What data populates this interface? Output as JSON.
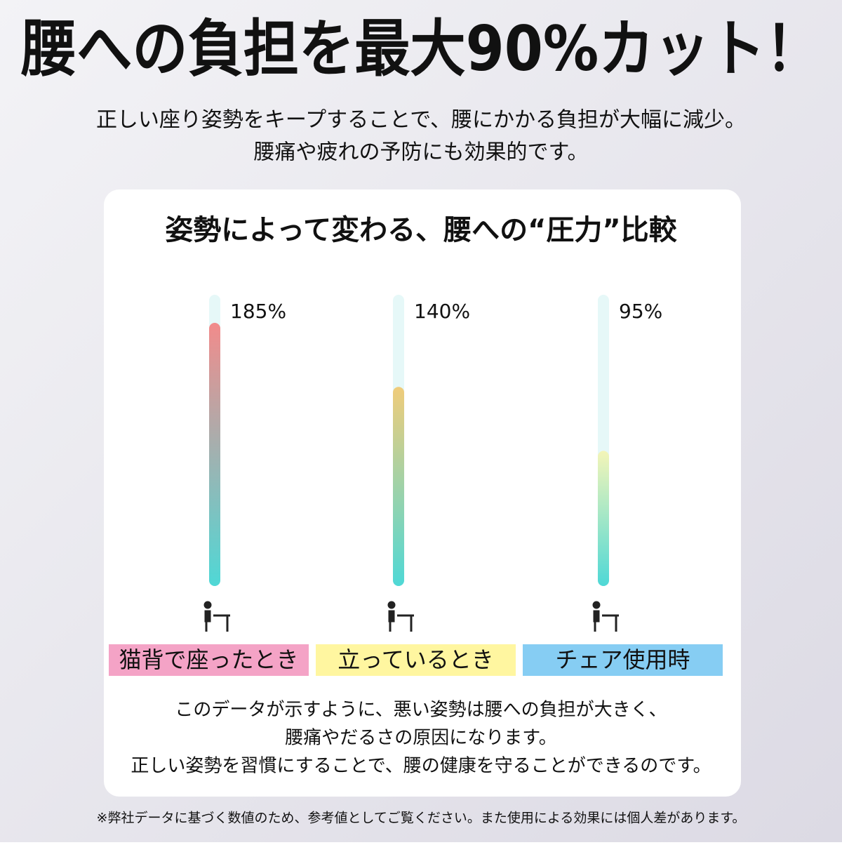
{
  "header": {
    "title": "腰への負担を最大90%カット！",
    "subtitle": [
      "正しい座り姿勢をキープすることで、腰にかかる負担が大幅に減少。",
      "腰痛や疲れの予防にも効果的です。"
    ]
  },
  "chart_data": {
    "type": "bar",
    "title": "姿勢によって変わる、腰への“圧力”比較",
    "categories": [
      "猫背で座ったとき",
      "立っているとき",
      "チェア使用時"
    ],
    "values": [
      185,
      140,
      95
    ],
    "value_labels": [
      "185%",
      "140%",
      "95%"
    ],
    "bar_colors": [
      "#f28b8b",
      "#f0cc7a",
      "#f4f5b8"
    ],
    "category_colors": [
      "#f4a3c6",
      "#fff6a0",
      "#86cdf3"
    ]
  },
  "note": [
    "このデータが示すように、悪い姿勢は腰への負担が大きく、",
    "腰痛やだるさの原因になります。",
    "正しい姿勢を習慣にすることで、腰の健康を守ることができるのです。"
  ],
  "footnote": "※弊社データに基づく数値のため、参考値としてご覧ください。また使用による効果には個人差があります。"
}
